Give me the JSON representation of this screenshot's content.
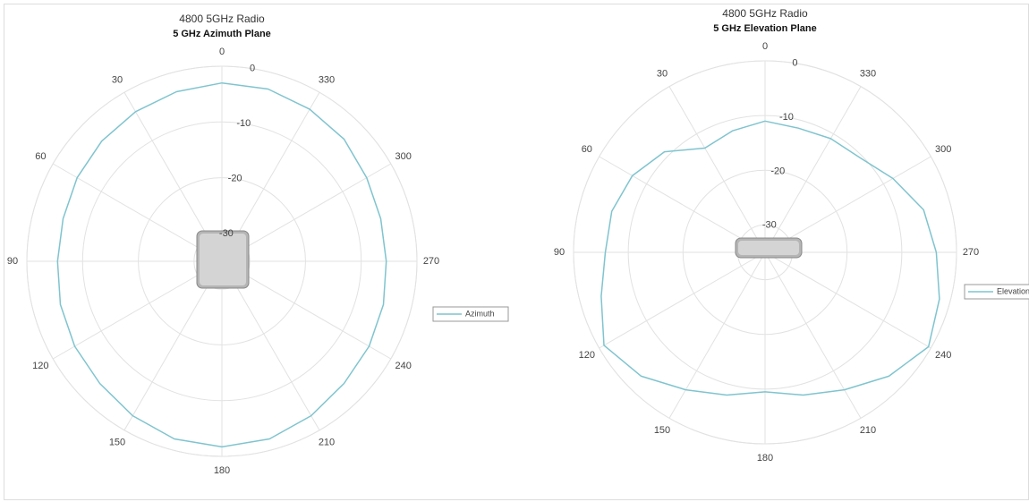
{
  "chart_data": [
    {
      "type": "polar",
      "title": "4800 5GHz Radio",
      "subtitle": "5 GHz Azimuth Plane",
      "theta": [
        0,
        15,
        30,
        45,
        60,
        75,
        90,
        105,
        120,
        135,
        150,
        165,
        180,
        195,
        210,
        225,
        240,
        255,
        270,
        285,
        300,
        315,
        330,
        345,
        360
      ],
      "series": [
        {
          "name": "Azimuth",
          "color": "#7fc4cf",
          "values": [
            -3,
            -3.5,
            -4,
            -4.5,
            -5,
            -5.5,
            -5.5,
            -5,
            -4.5,
            -4,
            -3,
            -2,
            -1.7,
            -2,
            -3,
            -4,
            -4.5,
            -5,
            -5.5,
            -5.5,
            -5,
            -4,
            -3.5,
            -3,
            -3
          ]
        }
      ],
      "rlim": [
        -35,
        0
      ],
      "rticks": [
        0,
        -10,
        -20,
        -30
      ],
      "thetaticks": [
        0,
        30,
        60,
        90,
        120,
        150,
        180,
        210,
        240,
        270,
        300,
        330
      ],
      "legend": "right",
      "grid": true
    },
    {
      "type": "polar",
      "title": "4800 5GHz Radio",
      "subtitle": "5 GHz Elevation Plane",
      "theta": [
        0,
        15,
        30,
        45,
        60,
        75,
        90,
        105,
        120,
        135,
        150,
        165,
        180,
        195,
        210,
        225,
        240,
        255,
        270,
        285,
        300,
        315,
        330,
        345,
        360
      ],
      "series": [
        {
          "name": "Elevation",
          "color": "#7fc4cf",
          "values": [
            -11,
            -12,
            -13,
            -9,
            -7,
            -6,
            -5.8,
            -4,
            -1,
            -3,
            -6,
            -8,
            -9.5,
            -8,
            -6,
            -3,
            -0.5,
            -2,
            -3.7,
            -5,
            -8,
            -10.5,
            -11,
            -11.5,
            -11
          ]
        }
      ],
      "rlim": [
        -35,
        0
      ],
      "rticks": [
        0,
        -10,
        -20,
        -30
      ],
      "thetaticks": [
        0,
        30,
        60,
        90,
        120,
        150,
        180,
        210,
        240,
        270,
        300,
        330
      ],
      "legend": "right",
      "grid": true
    }
  ]
}
